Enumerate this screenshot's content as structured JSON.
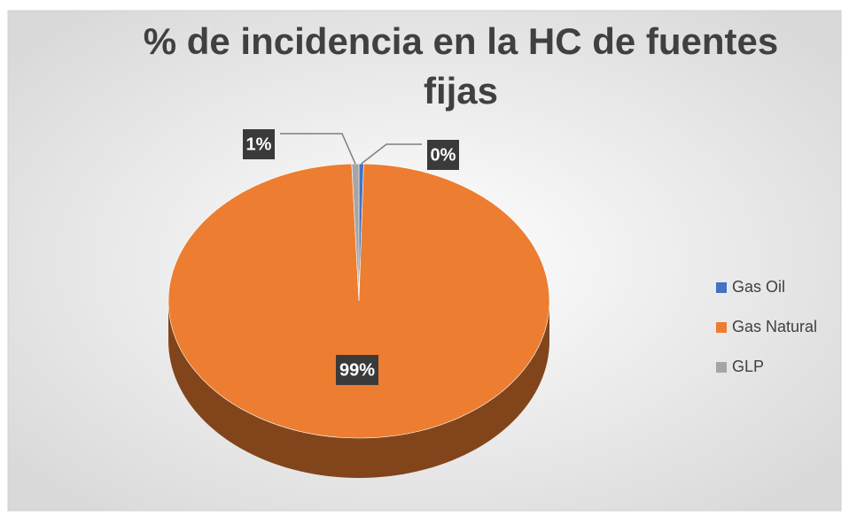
{
  "chart_data": {
    "type": "pie3d",
    "title": "% de incidencia en la HC de fuentes fijas",
    "categories": [
      "Gas Oil",
      "Gas Natural",
      "GLP"
    ],
    "values": [
      0.4,
      99,
      0.6
    ],
    "value_labels": [
      "0%",
      "99%",
      "1%"
    ],
    "colors": [
      "#4472c4",
      "#ed7d31",
      "#a5a5a5"
    ],
    "legend": "right"
  }
}
